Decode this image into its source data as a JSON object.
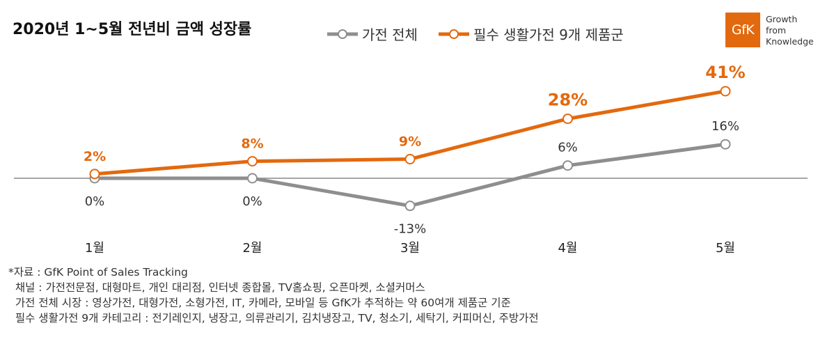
{
  "title": "2020년 1~5월 전년비 금액 성장률",
  "logo": {
    "mark": "GfK",
    "tagline": [
      "Growth",
      "from",
      "Knowledge"
    ]
  },
  "colors": {
    "total": "#8e8e90",
    "essential": "#e3690e",
    "baseline": "#888888",
    "logo": "#e3690e"
  },
  "chart_data": {
    "type": "line",
    "categories": [
      "1월",
      "2월",
      "3월",
      "4월",
      "5월"
    ],
    "series": [
      {
        "name": "가전 전체",
        "values": [
          0,
          0,
          -13,
          6,
          16
        ],
        "labels": [
          "0%",
          "0%",
          "-13%",
          "6%",
          "16%"
        ]
      },
      {
        "name": "필수 생활가전 9개 제품군",
        "values": [
          2,
          8,
          9,
          28,
          41
        ],
        "labels": [
          "2%",
          "8%",
          "9%",
          "28%",
          "41%"
        ]
      }
    ],
    "legend_position": "top",
    "grid": false
  },
  "notes": [
    "*자료 : GfK Point of Sales Tracking",
    "  채널 : 가전전문점, 대형마트, 개인 대리점, 인터넷 종합몰, TV홈쇼핑, 오픈마켓, 소셜커머스",
    "  가전 전체 시장 : 영상가전, 대형가전, 소형가전, IT, 카메라, 모바일 등 GfK가 추적하는 약 60여개 제품군 기준",
    "  필수 생활가전 9개 카테고리 : 전기레인지, 냉장고, 의류관리기, 김치냉장고, TV, 청소기, 세탁기, 커피머신, 주방가전"
  ]
}
